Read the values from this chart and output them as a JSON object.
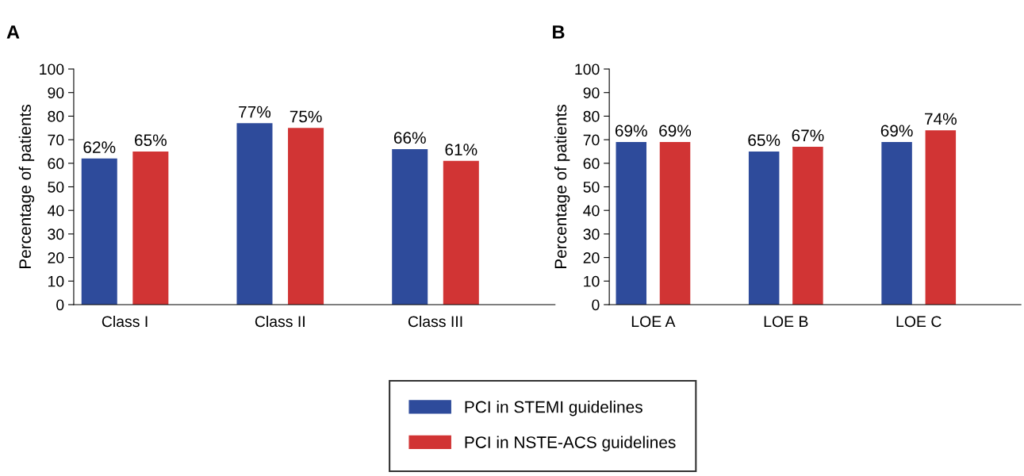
{
  "chart_data": [
    {
      "type": "bar",
      "title": "A",
      "ylabel": "Percentage of patients",
      "categories": [
        "Class I",
        "Class II",
        "Class III"
      ],
      "series": [
        {
          "name": "PCI in STEMI guidelines",
          "color": "#2e4b9b",
          "values": [
            62,
            77,
            66
          ],
          "value_labels": [
            "62%",
            "77%",
            "66%"
          ]
        },
        {
          "name": "PCI in NSTE-ACS guidelines",
          "color": "#d13434",
          "values": [
            65,
            75,
            61
          ],
          "value_labels": [
            "65%",
            "75%",
            "61%"
          ]
        }
      ],
      "ylim": [
        0,
        100
      ],
      "yticks": [
        0,
        10,
        20,
        30,
        40,
        50,
        60,
        70,
        80,
        90,
        100
      ],
      "grid": false,
      "legend": "bottom"
    },
    {
      "type": "bar",
      "title": "B",
      "ylabel": "Percentage of patients",
      "categories": [
        "LOE A",
        "LOE B",
        "LOE C"
      ],
      "series": [
        {
          "name": "PCI in STEMI guidelines",
          "color": "#2e4b9b",
          "values": [
            69,
            65,
            69
          ],
          "value_labels": [
            "69%",
            "65%",
            "69%"
          ]
        },
        {
          "name": "PCI in NSTE-ACS guidelines",
          "color": "#d13434",
          "values": [
            69,
            67,
            74
          ],
          "value_labels": [
            "69%",
            "67%",
            "74%"
          ]
        }
      ],
      "ylim": [
        0,
        100
      ],
      "yticks": [
        0,
        10,
        20,
        30,
        40,
        50,
        60,
        70,
        80,
        90,
        100
      ],
      "grid": false,
      "legend": "bottom"
    }
  ]
}
